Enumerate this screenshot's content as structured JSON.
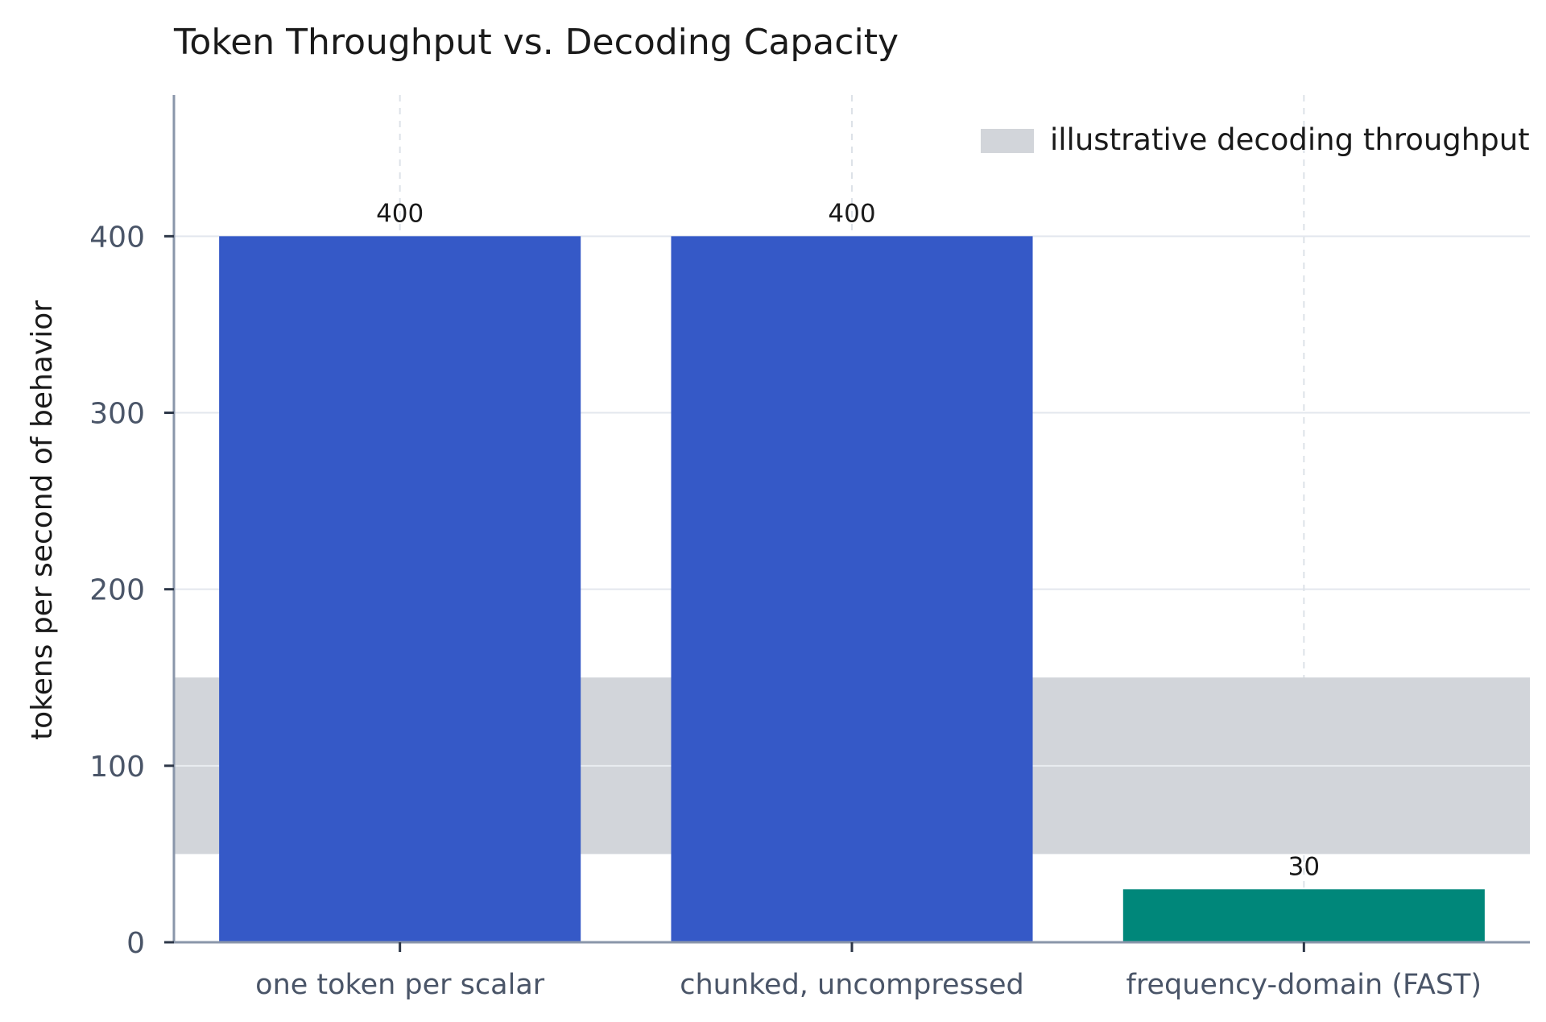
{
  "chart_data": {
    "type": "bar",
    "title": "Token Throughput vs. Decoding Capacity",
    "xlabel": "",
    "ylabel": "tokens per second of behavior",
    "categories": [
      "one token per scalar",
      "chunked, uncompressed",
      "frequency-domain (FAST)"
    ],
    "values": [
      400,
      400,
      30
    ],
    "bar_colors": [
      "#3559c7",
      "#3559c7",
      "#00877a"
    ],
    "ylim": [
      0,
      480
    ],
    "yticks": [
      0,
      100,
      200,
      300,
      400
    ],
    "band": {
      "label": "illustrative decoding throughput",
      "range": [
        50,
        150
      ],
      "color": "#d2d5da"
    },
    "grid": true,
    "legend_position": "top-right"
  }
}
